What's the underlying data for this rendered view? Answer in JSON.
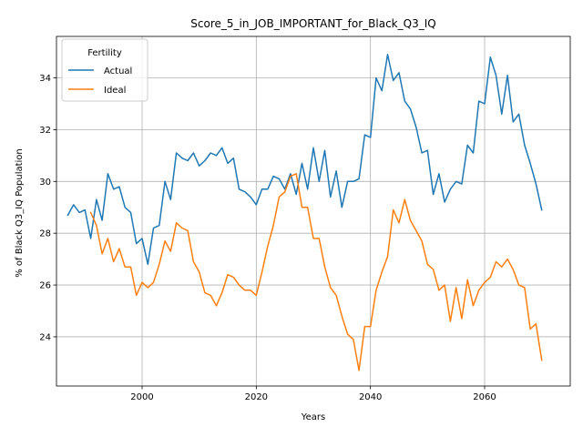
{
  "chart_data": {
    "type": "line",
    "title": "Score_5_in_JOB_IMPORTANT_for_Black_Q3_IQ",
    "xlabel": "Years",
    "ylabel": "% of Black Q3_IQ Population",
    "xlim": [
      1985,
      2075
    ],
    "ylim": [
      22.1,
      35.6
    ],
    "xticks": [
      2000,
      2020,
      2040,
      2060
    ],
    "xtick_labels": [
      "2000",
      "2020",
      "2040",
      "2060"
    ],
    "yticks": [
      24,
      26,
      28,
      30,
      32,
      34
    ],
    "ytick_labels": [
      "24",
      "26",
      "28",
      "30",
      "32",
      "34"
    ],
    "grid": true,
    "legend": {
      "title": "Fertility",
      "placement": "top-left"
    },
    "series": [
      {
        "name": "Actual",
        "color": "#1f77b4",
        "x": [
          1987,
          1988,
          1989,
          1990,
          1991,
          1992,
          1993,
          1994,
          1995,
          1996,
          1997,
          1998,
          1999,
          2000,
          2001,
          2002,
          2003,
          2004,
          2005,
          2006,
          2007,
          2008,
          2009,
          2010,
          2011,
          2012,
          2013,
          2014,
          2015,
          2016,
          2017,
          2018,
          2019,
          2020,
          2021,
          2022,
          2023,
          2024,
          2025,
          2026,
          2027,
          2028,
          2029,
          2030,
          2031,
          2032,
          2033,
          2034,
          2035,
          2036,
          2037,
          2038,
          2039,
          2040,
          2041,
          2042,
          2043,
          2044,
          2045,
          2046,
          2047,
          2048,
          2049,
          2050,
          2051,
          2052,
          2053,
          2054,
          2055,
          2056,
          2057,
          2058,
          2059,
          2060,
          2061,
          2062,
          2063,
          2064,
          2065,
          2066,
          2067,
          2068,
          2069,
          2070
        ],
        "values": [
          28.7,
          29.1,
          28.8,
          28.9,
          27.8,
          29.3,
          28.5,
          30.3,
          29.7,
          29.8,
          29.0,
          28.8,
          27.6,
          27.8,
          26.8,
          28.2,
          28.3,
          30.0,
          29.3,
          31.1,
          30.9,
          30.8,
          31.1,
          30.6,
          30.8,
          31.1,
          31.0,
          31.3,
          30.7,
          30.9,
          29.7,
          29.6,
          29.4,
          29.1,
          29.7,
          29.7,
          30.2,
          30.1,
          29.7,
          30.3,
          29.5,
          30.7,
          29.7,
          31.3,
          30.0,
          31.2,
          29.4,
          30.4,
          29.0,
          30.0,
          30.0,
          30.1,
          31.8,
          31.7,
          34.0,
          33.5,
          34.9,
          33.9,
          34.2,
          33.1,
          32.8,
          32.1,
          31.1,
          31.2,
          29.5,
          30.3,
          29.2,
          29.7,
          30.0,
          29.9,
          31.4,
          31.1,
          33.1,
          33.0,
          34.8,
          34.1,
          32.6,
          34.1,
          32.3,
          32.6,
          31.4,
          30.7,
          29.9,
          28.9
        ]
      },
      {
        "name": "Ideal",
        "color": "#ff7f0e",
        "x": [
          1991,
          1992,
          1993,
          1994,
          1995,
          1996,
          1997,
          1998,
          1999,
          2000,
          2001,
          2002,
          2003,
          2004,
          2005,
          2006,
          2007,
          2008,
          2009,
          2010,
          2011,
          2012,
          2013,
          2014,
          2015,
          2016,
          2017,
          2018,
          2019,
          2020,
          2021,
          2022,
          2023,
          2024,
          2025,
          2026,
          2027,
          2028,
          2029,
          2030,
          2031,
          2032,
          2033,
          2034,
          2035,
          2036,
          2037,
          2038,
          2039,
          2040,
          2041,
          2042,
          2043,
          2044,
          2045,
          2046,
          2047,
          2048,
          2049,
          2050,
          2051,
          2052,
          2053,
          2054,
          2055,
          2056,
          2057,
          2058,
          2059,
          2060,
          2061,
          2062,
          2063,
          2064,
          2065,
          2066,
          2067,
          2068,
          2069,
          2070
        ],
        "values": [
          28.8,
          28.3,
          27.2,
          27.8,
          26.9,
          27.4,
          26.7,
          26.7,
          25.6,
          26.1,
          25.9,
          26.1,
          26.8,
          27.7,
          27.3,
          28.4,
          28.2,
          28.1,
          26.9,
          26.5,
          25.7,
          25.6,
          25.2,
          25.7,
          26.4,
          26.3,
          26.0,
          25.8,
          25.8,
          25.6,
          26.5,
          27.5,
          28.3,
          29.4,
          29.6,
          30.2,
          30.3,
          29.0,
          29.0,
          27.8,
          27.8,
          26.7,
          25.9,
          25.6,
          24.8,
          24.1,
          23.9,
          22.7,
          24.4,
          24.4,
          25.8,
          26.5,
          27.1,
          28.9,
          28.4,
          29.3,
          28.5,
          28.1,
          27.7,
          26.8,
          26.6,
          25.8,
          26.0,
          24.6,
          25.9,
          24.7,
          26.2,
          25.2,
          25.8,
          26.1,
          26.3,
          26.9,
          26.7,
          27.0,
          26.6,
          26.0,
          25.9,
          24.3,
          24.5,
          23.1
        ]
      }
    ]
  }
}
